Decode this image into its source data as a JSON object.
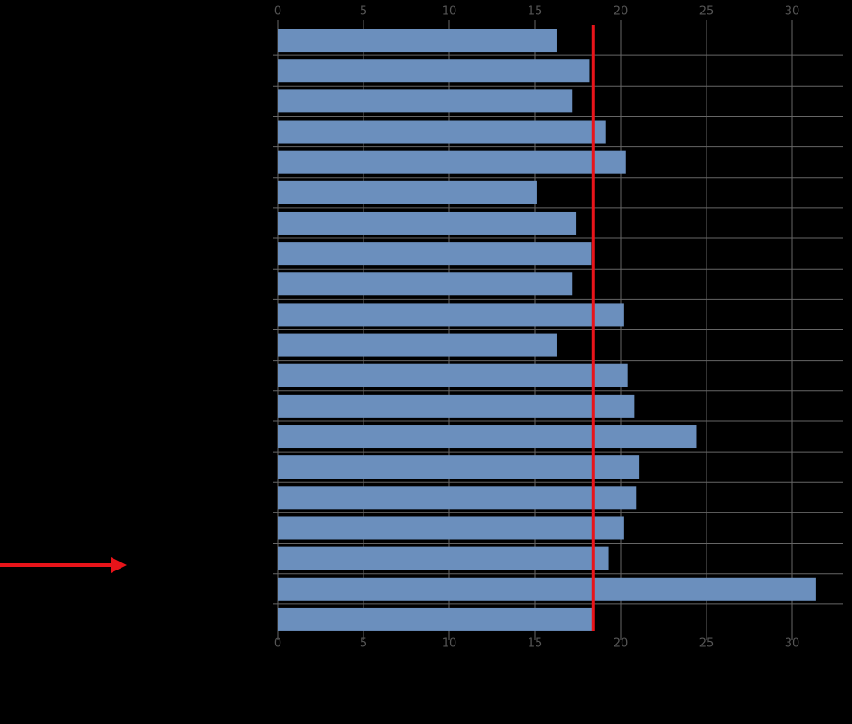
{
  "chart_data": {
    "type": "barh",
    "categories": [
      null,
      null,
      null,
      null,
      null,
      null,
      null,
      null,
      null,
      null,
      null,
      null,
      null,
      null,
      null,
      null,
      null,
      null,
      null,
      null
    ],
    "values": [
      16.3,
      18.2,
      17.2,
      19.1,
      20.3,
      15.1,
      17.4,
      18.3,
      17.2,
      20.2,
      16.3,
      20.4,
      20.8,
      24.4,
      21.1,
      20.9,
      20.2,
      19.3,
      31.4,
      18.4
    ],
    "color": "#6b8fbd",
    "reference_line": {
      "value": 18.4,
      "color": "#e8141a"
    },
    "xlim": [
      0,
      33
    ],
    "xticks": [
      0,
      5,
      10,
      15,
      20,
      25,
      30
    ],
    "grid": true
  }
}
